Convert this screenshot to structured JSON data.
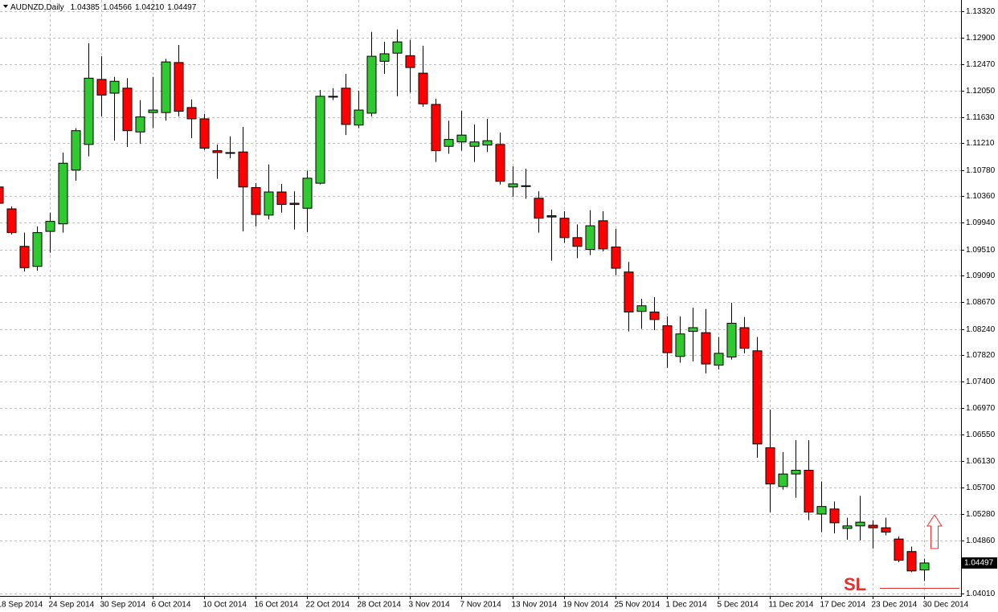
{
  "chart_data": {
    "type": "candlestick",
    "title": "AUDNZD,Daily",
    "info_labels": [
      "1.04385",
      "1.04566",
      "1.04210",
      "1.04497"
    ],
    "categories": [
      "18 Sep 2014",
      null,
      null,
      null,
      "24 Sep 2014",
      null,
      null,
      null,
      "30 Sep 2014",
      null,
      null,
      null,
      "6 Oct 2014",
      null,
      null,
      null,
      "10 Oct 2014",
      null,
      null,
      null,
      "16 Oct 2014",
      null,
      null,
      null,
      "22 Oct 2014",
      null,
      null,
      null,
      "28 Oct 2014",
      null,
      null,
      null,
      "3 Nov 2014",
      null,
      null,
      null,
      "7 Nov 2014",
      null,
      null,
      null,
      "13 Nov 2014",
      null,
      null,
      null,
      "19 Nov 2014",
      null,
      null,
      null,
      "25 Nov 2014",
      null,
      null,
      null,
      "1 Dec 2014",
      null,
      null,
      null,
      "5 Dec 2014",
      null,
      null,
      null,
      "11 Dec 2014",
      null,
      null,
      null,
      "17 Dec 2014",
      null,
      null,
      null,
      "23 Dec 2014",
      null,
      null,
      null,
      "30 Dec 2014"
    ],
    "open": [
      1.1051,
      1.1016,
      1.0956,
      1.0924,
      1.098,
      1.0992,
      1.1078,
      1.1119,
      1.1223,
      1.1201,
      1.1209,
      1.1139,
      1.117,
      1.117,
      1.125,
      1.1178,
      1.116,
      1.1109,
      1.1106,
      1.1107,
      1.105,
      1.1006,
      1.1043,
      1.1025,
      1.1017,
      1.1057,
      1.1196,
      1.1209,
      1.115,
      1.1169,
      1.1252,
      1.1265,
      1.1261,
      1.1233,
      1.1183,
      1.1116,
      1.1123,
      1.1116,
      1.1118,
      1.1119,
      1.1051,
      1.1053,
      1.1033,
      1.1005,
      1.1001,
      1.097,
      1.0951,
      1.0997,
      1.0955,
      1.0915,
      1.0852,
      1.0851,
      1.0829,
      1.078,
      1.082,
      1.0818,
      1.0766,
      1.0779,
      1.0826,
      1.0789,
      1.0634,
      1.0572,
      1.0592,
      1.0598,
      1.0528,
      1.0536,
      1.0505,
      1.0509,
      1.051,
      1.0506,
      1.0488,
      1.0468,
      1.04385
    ],
    "high": [
      1.1057,
      1.102,
      1.0978,
      1.0988,
      1.101,
      1.1106,
      1.1145,
      1.1281,
      1.126,
      1.1227,
      1.1225,
      1.119,
      1.1227,
      1.1256,
      1.1278,
      1.1191,
      1.1168,
      1.1119,
      1.1132,
      1.1147,
      1.1057,
      1.1087,
      1.1056,
      1.1044,
      1.1077,
      1.1206,
      1.1209,
      1.1232,
      1.1205,
      1.1299,
      1.1283,
      1.1303,
      1.1286,
      1.1277,
      1.1192,
      1.1157,
      1.1173,
      1.1151,
      1.116,
      1.1138,
      1.1084,
      1.108,
      1.1044,
      1.1015,
      1.1012,
      1.0991,
      1.1014,
      1.1012,
      1.0984,
      1.0931,
      1.0872,
      1.0875,
      1.0844,
      1.0844,
      1.0858,
      1.0856,
      1.0811,
      1.0866,
      1.0843,
      1.0811,
      1.0695,
      1.0627,
      1.0646,
      1.0646,
      1.058,
      1.0548,
      1.0522,
      1.0557,
      1.0518,
      1.0522,
      1.0492,
      1.0476,
      1.04566
    ],
    "low": [
      1.1023,
      1.0975,
      1.0916,
      1.0917,
      1.0946,
      1.0978,
      1.1061,
      1.11,
      1.1164,
      1.1125,
      1.1115,
      1.112,
      1.1145,
      1.1157,
      1.1164,
      1.1129,
      1.111,
      1.1064,
      1.1097,
      1.098,
      1.0988,
      1.0999,
      1.101,
      1.0983,
      1.0979,
      1.1055,
      1.119,
      1.1134,
      1.1145,
      1.1164,
      1.1232,
      1.1196,
      1.1202,
      1.1179,
      1.1091,
      1.1104,
      1.1109,
      1.1091,
      1.1107,
      1.1055,
      1.1035,
      1.1032,
      1.0978,
      1.0933,
      1.0962,
      1.0937,
      1.0942,
      1.0948,
      1.091,
      1.082,
      1.0824,
      1.0822,
      1.0762,
      1.077,
      1.0772,
      1.0753,
      1.0759,
      1.0775,
      1.0785,
      1.0618,
      1.0531,
      1.0567,
      1.0554,
      1.0518,
      1.0499,
      1.0497,
      1.0487,
      1.0486,
      1.0473,
      1.0494,
      1.0451,
      1.0435,
      1.0421
    ],
    "close": [
      1.1025,
      1.0978,
      1.0922,
      1.0978,
      1.0996,
      1.1089,
      1.1141,
      1.1225,
      1.1198,
      1.122,
      1.1141,
      1.1163,
      1.1174,
      1.1251,
      1.1172,
      1.116,
      1.1113,
      1.1106,
      1.1105,
      1.1051,
      1.1007,
      1.1043,
      1.1023,
      1.1023,
      1.1065,
      1.1196,
      1.1195,
      1.1151,
      1.1174,
      1.126,
      1.1264,
      1.1283,
      1.1242,
      1.1184,
      1.1109,
      1.1127,
      1.1134,
      1.1123,
      1.1125,
      1.106,
      1.1056,
      1.1052,
      1.1001,
      1.1003,
      1.097,
      1.0956,
      1.0989,
      1.0952,
      1.0921,
      1.0851,
      1.0861,
      1.0839,
      1.0786,
      1.0816,
      1.0826,
      1.0768,
      1.0785,
      1.0833,
      1.0793,
      1.064,
      1.0576,
      1.0592,
      1.0598,
      1.0531,
      1.054,
      1.0514,
      1.0509,
      1.0515,
      1.0506,
      1.0499,
      1.0454,
      1.0437,
      1.04497
    ],
    "up_color": "#32c832",
    "down_color": "#ff0000",
    "ylim": [
      1.0397,
      1.135
    ],
    "yticks": [
      {
        "value": 1.1332,
        "label": "1.13320"
      },
      {
        "value": 1.129,
        "label": "1.12900"
      },
      {
        "value": 1.1247,
        "label": "1.12470"
      },
      {
        "value": 1.1205,
        "label": "1.12050"
      },
      {
        "value": 1.1163,
        "label": "1.11630"
      },
      {
        "value": 1.1121,
        "label": "1.11210"
      },
      {
        "value": 1.1078,
        "label": "1.10780"
      },
      {
        "value": 1.1036,
        "label": "1.10360"
      },
      {
        "value": 1.0994,
        "label": "1.09940"
      },
      {
        "value": 1.0951,
        "label": "1.09510"
      },
      {
        "value": 1.0909,
        "label": "1.09090"
      },
      {
        "value": 1.0867,
        "label": "1.08670"
      },
      {
        "value": 1.0824,
        "label": "1.08240"
      },
      {
        "value": 1.0782,
        "label": "1.07820"
      },
      {
        "value": 1.074,
        "label": "1.07400"
      },
      {
        "value": 1.0697,
        "label": "1.06970"
      },
      {
        "value": 1.0655,
        "label": "1.06550"
      },
      {
        "value": 1.0613,
        "label": "1.06130"
      },
      {
        "value": 1.057,
        "label": "1.05700"
      },
      {
        "value": 1.0528,
        "label": "1.05280"
      },
      {
        "value": 1.0486,
        "label": "1.04860"
      },
      {
        "value": 1.0401,
        "label": "1.04010"
      }
    ],
    "current_price": 1.04497,
    "grid": true,
    "annotation": "SL"
  }
}
